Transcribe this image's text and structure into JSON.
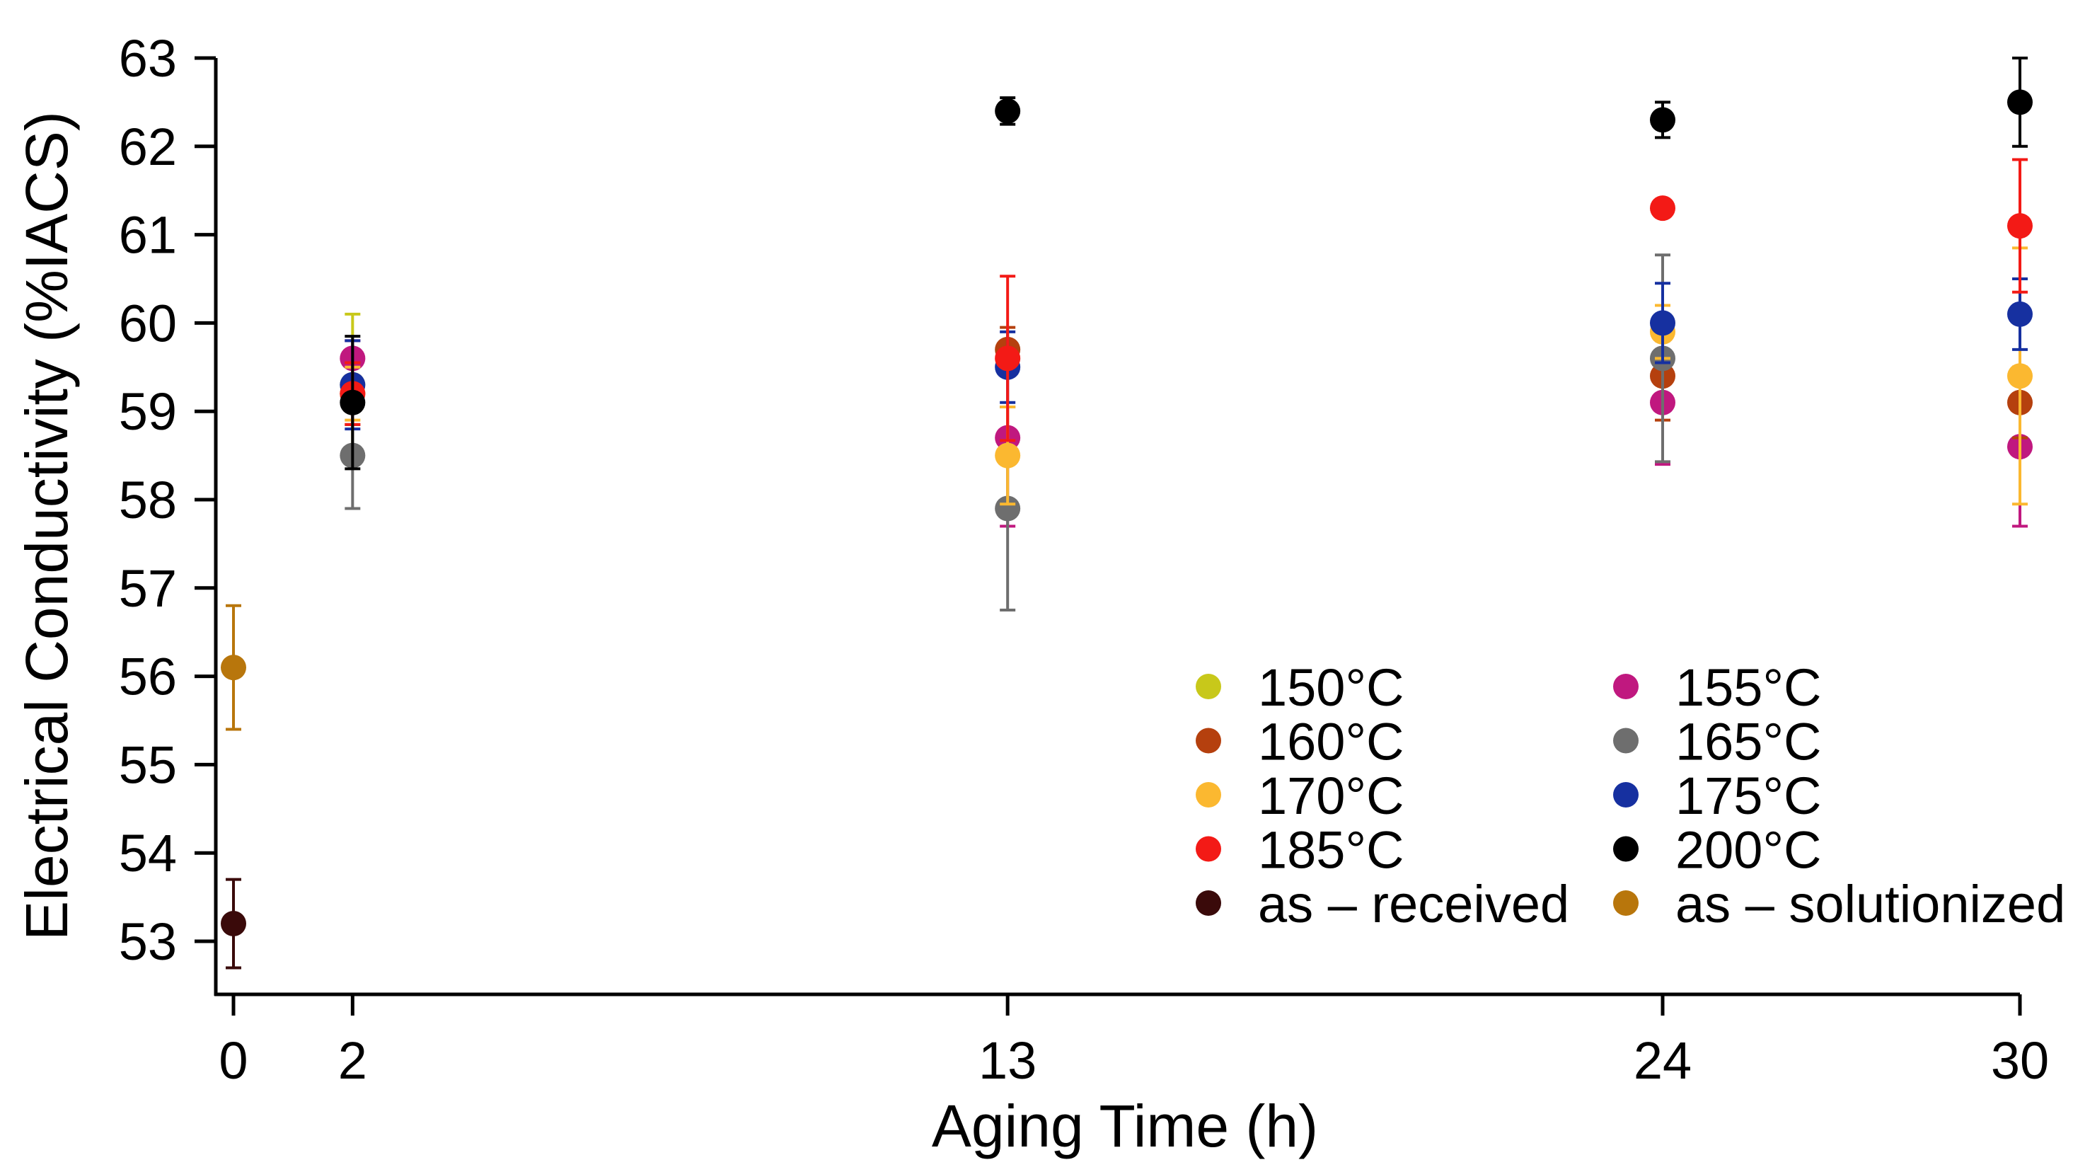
{
  "chart_data": {
    "type": "scatter",
    "xlabel": "Aging Time (h)",
    "ylabel": "Electrical Conductivity (%IACS)",
    "xlim": [
      -0.3,
      30
    ],
    "ylim": [
      52.3,
      63
    ],
    "xticks": [
      0,
      2,
      13,
      24,
      30
    ],
    "yticks": [
      53,
      54,
      55,
      56,
      57,
      58,
      59,
      60,
      61,
      62,
      63
    ],
    "legend_position": "lower-right",
    "series": [
      {
        "name": "150°C",
        "color": "#c8c81a",
        "points": [
          {
            "x": 2,
            "y": 59.3,
            "err": 0.8
          }
        ]
      },
      {
        "name": "155°C",
        "color": "#c0187f",
        "points": [
          {
            "x": 2,
            "y": 59.6,
            "err": 0.2
          },
          {
            "x": 13,
            "y": 58.7,
            "err": 1.0
          },
          {
            "x": 24,
            "y": 59.1,
            "err": 0.7
          },
          {
            "x": 30,
            "y": 58.6,
            "err": 0.9
          }
        ]
      },
      {
        "name": "160°C",
        "color": "#b5400e",
        "points": [
          {
            "x": 2,
            "y": 59.2,
            "err": 0.35
          },
          {
            "x": 13,
            "y": 59.7,
            "err": 0.25
          },
          {
            "x": 24,
            "y": 59.4,
            "err": 0.5
          },
          {
            "x": 30,
            "y": 59.1,
            "err": 0.4
          }
        ]
      },
      {
        "name": "165°C",
        "color": "#6e6e6e",
        "points": [
          {
            "x": 2,
            "y": 58.5,
            "err": 0.6
          },
          {
            "x": 13,
            "y": 57.9,
            "err": 1.15
          },
          {
            "x": 24,
            "y": 59.6,
            "err": 1.17
          }
        ]
      },
      {
        "name": "170°C",
        "color": "#fbb830",
        "points": [
          {
            "x": 2,
            "y": 59.2,
            "err": 0.3
          },
          {
            "x": 13,
            "y": 58.5,
            "err": 0.55
          },
          {
            "x": 24,
            "y": 59.9,
            "err": 0.3
          },
          {
            "x": 30,
            "y": 59.4,
            "err": 1.45
          }
        ]
      },
      {
        "name": "175°C",
        "color": "#1630a0",
        "points": [
          {
            "x": 2,
            "y": 59.3,
            "err": 0.5
          },
          {
            "x": 13,
            "y": 59.5,
            "err": 0.4
          },
          {
            "x": 24,
            "y": 60.0,
            "err": 0.45
          },
          {
            "x": 30,
            "y": 60.1,
            "err": 0.4
          }
        ]
      },
      {
        "name": "185°C",
        "color": "#f31a16",
        "points": [
          {
            "x": 2,
            "y": 59.2,
            "err": 0.35
          },
          {
            "x": 13,
            "y": 59.6,
            "err": 0.93
          },
          {
            "x": 24,
            "y": 61.3,
            "err": 0.1
          },
          {
            "x": 30,
            "y": 61.1,
            "err": 0.75
          }
        ]
      },
      {
        "name": "200°C",
        "color": "#000000",
        "points": [
          {
            "x": 2,
            "y": 59.1,
            "err": 0.75
          },
          {
            "x": 13,
            "y": 62.4,
            "err": 0.15
          },
          {
            "x": 24,
            "y": 62.3,
            "err": 0.2
          },
          {
            "x": 30,
            "y": 62.5,
            "err": 0.5
          }
        ]
      },
      {
        "name": "as – received",
        "color": "#3a0a0a",
        "points": [
          {
            "x": 0,
            "y": 53.2,
            "err": 0.5
          }
        ]
      },
      {
        "name": "as – solutionized",
        "color": "#b8760c",
        "points": [
          {
            "x": 0,
            "y": 56.1,
            "err": 0.7
          }
        ]
      }
    ],
    "legend_order": [
      "150°C",
      "155°C",
      "160°C",
      "165°C",
      "170°C",
      "175°C",
      "185°C",
      "200°C",
      "as – received",
      "as – solutionized"
    ]
  }
}
